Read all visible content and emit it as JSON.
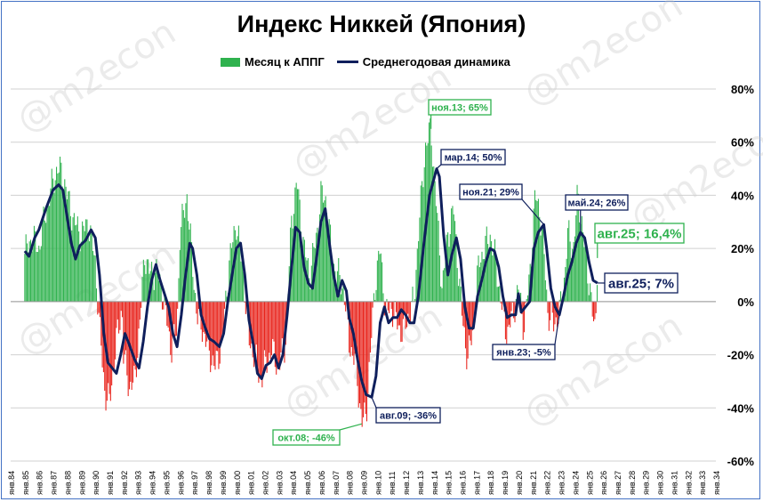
{
  "chart_data": {
    "type": "bar+line",
    "title": "Индекс Никкей (Япония)",
    "legend": {
      "placement": "top",
      "bar_label": "Месяц к АППГ",
      "line_label": "Среднегодовая динамика"
    },
    "y_axis": {
      "min": -60,
      "max": 80,
      "step": 20,
      "unit": "%",
      "side": "right",
      "tick_labels": [
        "80%",
        "60%",
        "40%",
        "20%",
        "0%",
        "-20%",
        "-40%",
        "-60%"
      ]
    },
    "x_axis": {
      "tick_labels": [
        "янв.84",
        "янв.85",
        "янв.86",
        "янв.87",
        "янв.88",
        "янв.89",
        "янв.90",
        "янв.91",
        "янв.92",
        "янв.93",
        "янв.94",
        "янв.95",
        "янв.96",
        "янв.97",
        "янв.98",
        "янв.99",
        "янв.00",
        "янв.01",
        "янв.02",
        "янв.03",
        "янв.04",
        "янв.05",
        "янв.06",
        "янв.07",
        "янв.08",
        "янв.09",
        "янв.10",
        "янв.11",
        "янв.12",
        "янв.13",
        "янв.14",
        "янв.15",
        "янв.16",
        "янв.17",
        "янв.18",
        "янв.19",
        "янв.20",
        "янв.21",
        "янв.22",
        "янв.23",
        "янв.24",
        "янв.25",
        "янв.26",
        "янв.27",
        "янв.28",
        "янв.29",
        "янв.30",
        "янв.31",
        "янв.32",
        "янв.33",
        "янв.34"
      ]
    },
    "colors": {
      "positive_bar": "#2fb24e",
      "negative_bar": "#e8221a",
      "line": "#0f1f5c",
      "green_label": "#2fb24e",
      "navy_label": "#0f1f5c"
    },
    "bar_series": {
      "name": "Месяц к АППГ",
      "keypoints": [
        [
          1985.0,
          18
        ],
        [
          1985.5,
          24
        ],
        [
          1986.0,
          20
        ],
        [
          1986.5,
          34
        ],
        [
          1987.0,
          45
        ],
        [
          1987.3,
          50
        ],
        [
          1987.7,
          48
        ],
        [
          1988.0,
          40
        ],
        [
          1988.5,
          30
        ],
        [
          1989.0,
          25
        ],
        [
          1989.5,
          30
        ],
        [
          1990.0,
          15
        ],
        [
          1990.3,
          -10
        ],
        [
          1990.7,
          -35
        ],
        [
          1991.0,
          -38
        ],
        [
          1991.5,
          -15
        ],
        [
          1991.9,
          -2
        ],
        [
          1992.0,
          -20
        ],
        [
          1992.4,
          -32
        ],
        [
          1992.8,
          -30
        ],
        [
          1993.2,
          -5
        ],
        [
          1993.5,
          18
        ],
        [
          1993.9,
          10
        ],
        [
          1994.3,
          12
        ],
        [
          1994.7,
          5
        ],
        [
          1995.0,
          -5
        ],
        [
          1995.4,
          -18
        ],
        [
          1995.8,
          -10
        ],
        [
          1996.0,
          25
        ],
        [
          1996.5,
          40
        ],
        [
          1996.8,
          20
        ],
        [
          1997.2,
          -5
        ],
        [
          1997.6,
          -10
        ],
        [
          1998.0,
          -18
        ],
        [
          1998.5,
          -25
        ],
        [
          1999.0,
          -15
        ],
        [
          1999.5,
          15
        ],
        [
          2000.0,
          30
        ],
        [
          2000.5,
          10
        ],
        [
          2000.9,
          -15
        ],
        [
          2001.3,
          -20
        ],
        [
          2001.7,
          -30
        ],
        [
          2002.0,
          -25
        ],
        [
          2002.5,
          -18
        ],
        [
          2003.0,
          -25
        ],
        [
          2003.5,
          -15
        ],
        [
          2003.9,
          30
        ],
        [
          2004.3,
          45
        ],
        [
          2004.8,
          20
        ],
        [
          2005.2,
          10
        ],
        [
          2005.7,
          25
        ],
        [
          2006.0,
          40
        ],
        [
          2006.4,
          38
        ],
        [
          2006.8,
          15
        ],
        [
          2007.2,
          10
        ],
        [
          2007.6,
          5
        ],
        [
          2008.0,
          -15
        ],
        [
          2008.5,
          -25
        ],
        [
          2008.9,
          -46
        ],
        [
          2009.2,
          -42
        ],
        [
          2009.5,
          -20
        ],
        [
          2009.8,
          5
        ],
        [
          2010.2,
          20
        ],
        [
          2010.6,
          -5
        ],
        [
          2011.0,
          -2
        ],
        [
          2011.4,
          -8
        ],
        [
          2011.8,
          -12
        ],
        [
          2012.2,
          -5
        ],
        [
          2012.6,
          0
        ],
        [
          2012.9,
          25
        ],
        [
          2013.4,
          58
        ],
        [
          2013.8,
          65
        ],
        [
          2014.2,
          35
        ],
        [
          2014.6,
          5
        ],
        [
          2015.0,
          25
        ],
        [
          2015.4,
          35
        ],
        [
          2015.7,
          15
        ],
        [
          2016.0,
          -5
        ],
        [
          2016.4,
          -22
        ],
        [
          2016.8,
          -10
        ],
        [
          2017.2,
          15
        ],
        [
          2017.6,
          20
        ],
        [
          2018.0,
          25
        ],
        [
          2018.4,
          15
        ],
        [
          2018.9,
          -5
        ],
        [
          2019.2,
          -12
        ],
        [
          2019.6,
          -5
        ],
        [
          2020.0,
          5
        ],
        [
          2020.4,
          -10
        ],
        [
          2020.8,
          10
        ],
        [
          2021.2,
          40
        ],
        [
          2021.5,
          35
        ],
        [
          2021.8,
          20
        ],
        [
          2022.1,
          -5
        ],
        [
          2022.5,
          -8
        ],
        [
          2022.9,
          -5
        ],
        [
          2023.2,
          5
        ],
        [
          2023.5,
          25
        ],
        [
          2023.9,
          20
        ],
        [
          2024.2,
          40
        ],
        [
          2024.5,
          30
        ],
        [
          2024.8,
          15
        ],
        [
          2025.1,
          5
        ],
        [
          2025.3,
          -8
        ],
        [
          2025.45,
          -12
        ],
        [
          2025.6,
          16.4
        ]
      ]
    },
    "line_series": {
      "name": "Среднегодовая динамика",
      "keypoints": [
        [
          1985.0,
          19
        ],
        [
          1985.3,
          17
        ],
        [
          1985.7,
          24
        ],
        [
          1986.0,
          27
        ],
        [
          1986.5,
          35
        ],
        [
          1987.0,
          42
        ],
        [
          1987.4,
          44
        ],
        [
          1987.7,
          42
        ],
        [
          1988.0,
          32
        ],
        [
          1988.3,
          22
        ],
        [
          1988.6,
          16
        ],
        [
          1988.9,
          21
        ],
        [
          1989.3,
          23
        ],
        [
          1989.7,
          27
        ],
        [
          1990.0,
          24
        ],
        [
          1990.3,
          10
        ],
        [
          1990.6,
          -12
        ],
        [
          1990.9,
          -23
        ],
        [
          1991.2,
          -25
        ],
        [
          1991.5,
          -27
        ],
        [
          1991.8,
          -20
        ],
        [
          1992.1,
          -12
        ],
        [
          1992.4,
          -16
        ],
        [
          1992.8,
          -22
        ],
        [
          1993.1,
          -25
        ],
        [
          1993.4,
          -15
        ],
        [
          1993.7,
          -2
        ],
        [
          1994.0,
          8
        ],
        [
          1994.3,
          14
        ],
        [
          1994.6,
          8
        ],
        [
          1994.9,
          3
        ],
        [
          1995.2,
          -2
        ],
        [
          1995.5,
          -12
        ],
        [
          1995.8,
          -17
        ],
        [
          1996.1,
          -5
        ],
        [
          1996.4,
          10
        ],
        [
          1996.7,
          22
        ],
        [
          1996.9,
          20
        ],
        [
          1997.2,
          10
        ],
        [
          1997.5,
          -5
        ],
        [
          1997.8,
          -10
        ],
        [
          1998.1,
          -14
        ],
        [
          1998.4,
          -15
        ],
        [
          1998.8,
          -17
        ],
        [
          1999.1,
          -12
        ],
        [
          1999.4,
          0
        ],
        [
          1999.7,
          10
        ],
        [
          2000.0,
          20
        ],
        [
          2000.3,
          22
        ],
        [
          2000.6,
          10
        ],
        [
          2000.9,
          -7
        ],
        [
          2001.2,
          -16
        ],
        [
          2001.5,
          -27
        ],
        [
          2001.8,
          -29
        ],
        [
          2002.1,
          -24
        ],
        [
          2002.4,
          -23
        ],
        [
          2002.7,
          -20
        ],
        [
          2003.0,
          -25
        ],
        [
          2003.3,
          -20
        ],
        [
          2003.6,
          -5
        ],
        [
          2003.9,
          12
        ],
        [
          2004.2,
          28
        ],
        [
          2004.5,
          26
        ],
        [
          2004.8,
          13
        ],
        [
          2005.1,
          7
        ],
        [
          2005.4,
          5
        ],
        [
          2005.7,
          17
        ],
        [
          2006.0,
          30
        ],
        [
          2006.3,
          35
        ],
        [
          2006.6,
          22
        ],
        [
          2006.9,
          10
        ],
        [
          2007.2,
          2
        ],
        [
          2007.5,
          8
        ],
        [
          2007.8,
          4
        ],
        [
          2008.0,
          -6
        ],
        [
          2008.3,
          -12
        ],
        [
          2008.6,
          -22
        ],
        [
          2008.9,
          -30
        ],
        [
          2009.2,
          -35
        ],
        [
          2009.6,
          -36
        ],
        [
          2009.9,
          -28
        ],
        [
          2010.2,
          -8
        ],
        [
          2010.5,
          -2
        ],
        [
          2010.8,
          -8
        ],
        [
          2011.1,
          -6
        ],
        [
          2011.4,
          -6
        ],
        [
          2011.7,
          -3
        ],
        [
          2012.0,
          -5
        ],
        [
          2012.3,
          -8
        ],
        [
          2012.6,
          -8
        ],
        [
          2012.9,
          2
        ],
        [
          2013.3,
          22
        ],
        [
          2013.7,
          40
        ],
        [
          2014.2,
          50
        ],
        [
          2014.4,
          47
        ],
        [
          2014.7,
          25
        ],
        [
          2015.0,
          10
        ],
        [
          2015.3,
          18
        ],
        [
          2015.6,
          24
        ],
        [
          2015.9,
          16
        ],
        [
          2016.2,
          -2
        ],
        [
          2016.5,
          -10
        ],
        [
          2016.8,
          -10
        ],
        [
          2017.1,
          2
        ],
        [
          2017.4,
          8
        ],
        [
          2017.7,
          15
        ],
        [
          2018.0,
          20
        ],
        [
          2018.3,
          19
        ],
        [
          2018.6,
          13
        ],
        [
          2018.9,
          2
        ],
        [
          2019.2,
          -6
        ],
        [
          2019.5,
          -5
        ],
        [
          2019.8,
          -5
        ],
        [
          2020.0,
          3
        ],
        [
          2020.2,
          -4
        ],
        [
          2020.5,
          -2
        ],
        [
          2020.8,
          0
        ],
        [
          2021.1,
          20
        ],
        [
          2021.4,
          26
        ],
        [
          2021.8,
          29
        ],
        [
          2022.0,
          20
        ],
        [
          2022.3,
          5
        ],
        [
          2022.6,
          -2
        ],
        [
          2022.9,
          -5
        ],
        [
          2023.2,
          2
        ],
        [
          2023.5,
          10
        ],
        [
          2023.8,
          15
        ],
        [
          2024.1,
          22
        ],
        [
          2024.4,
          26
        ],
        [
          2024.7,
          24
        ],
        [
          2025.0,
          15
        ],
        [
          2025.3,
          8
        ],
        [
          2025.6,
          7
        ]
      ]
    },
    "annotations": [
      {
        "text": "ноя.13; 65%",
        "color": "green",
        "x": 2013.8,
        "y": 65
      },
      {
        "text": "мар.14; 50%",
        "color": "navy",
        "x": 2014.2,
        "y": 50
      },
      {
        "text": "ноя.21; 29%",
        "color": "navy",
        "x": 2021.8,
        "y": 29
      },
      {
        "text": "май.24; 26%",
        "color": "navy",
        "x": 2024.4,
        "y": 26
      },
      {
        "text": "авг.25; 16,4%",
        "color": "green",
        "x": 2025.6,
        "y": 16.4,
        "large": true
      },
      {
        "text": "авг.25; 7%",
        "color": "navy",
        "x": 2025.6,
        "y": 7,
        "large": true
      },
      {
        "text": "янв.23; -5%",
        "color": "navy",
        "x": 2022.9,
        "y": -5
      },
      {
        "text": "окт.08; -46%",
        "color": "green",
        "x": 2008.9,
        "y": -46
      },
      {
        "text": "авг.09; -36%",
        "color": "navy",
        "x": 2009.6,
        "y": -36
      }
    ],
    "watermark": "@m2econ"
  }
}
